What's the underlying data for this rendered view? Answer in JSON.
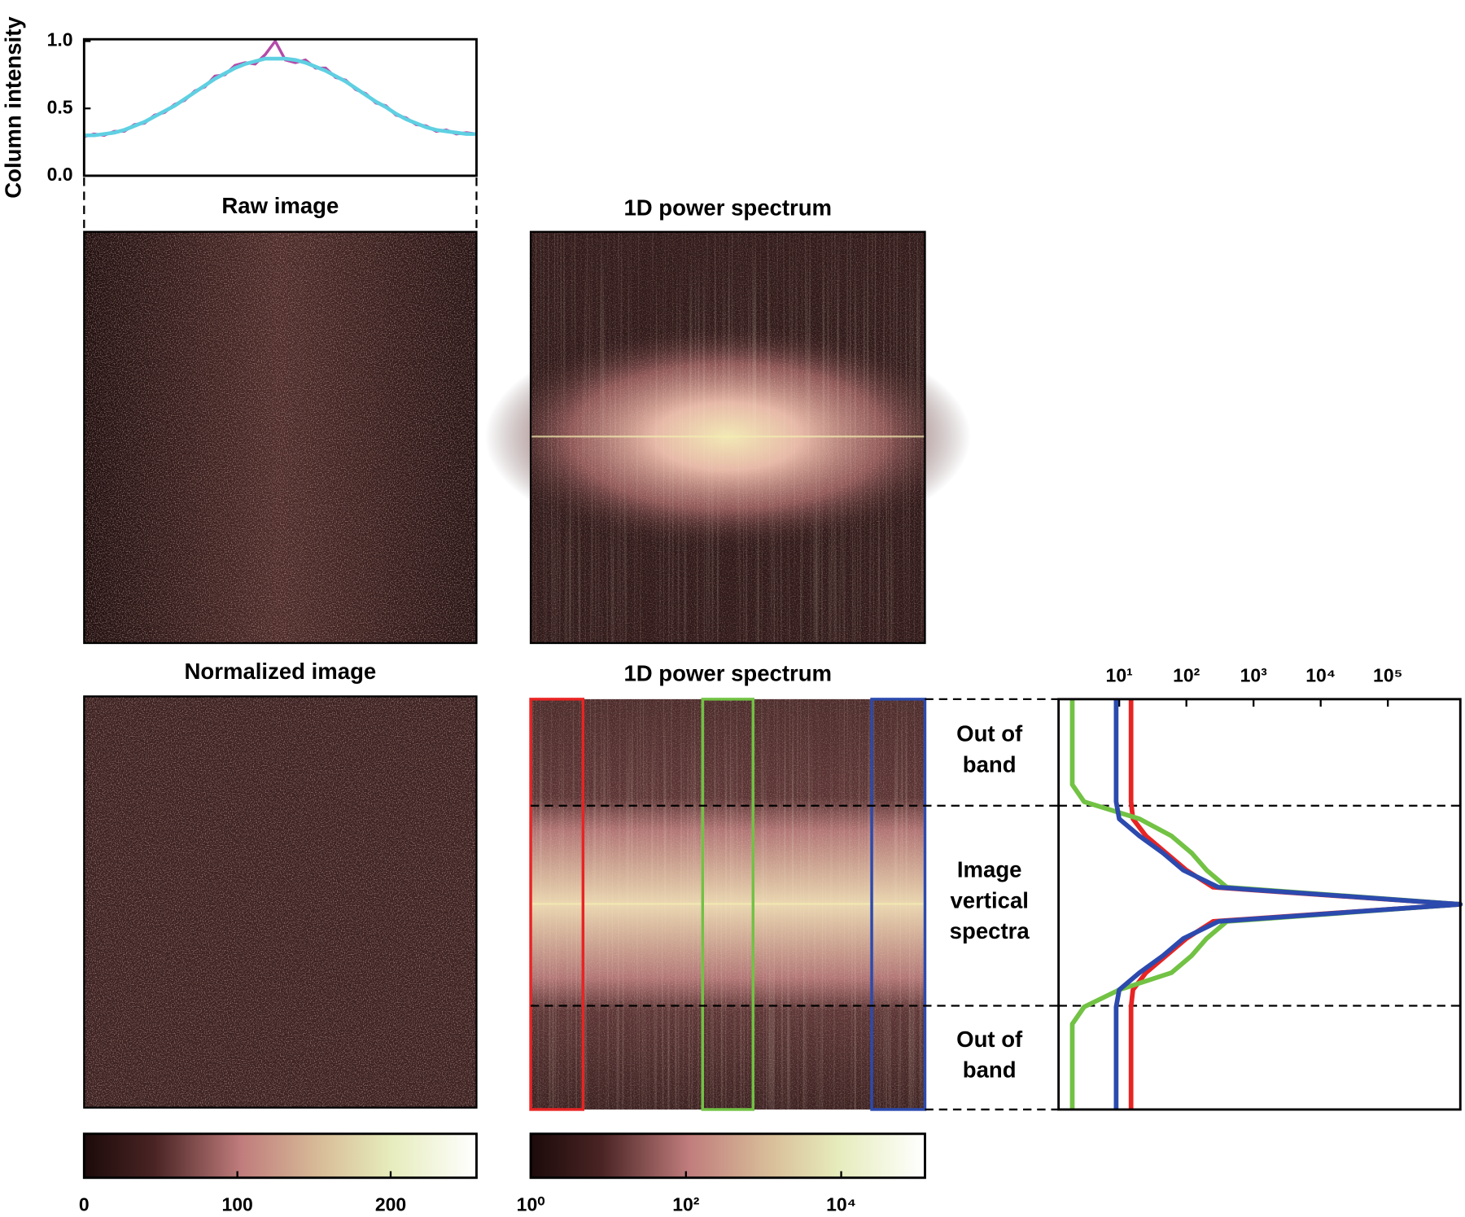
{
  "chart_data": [
    {
      "type": "line",
      "ylabel": "Column intensity",
      "ylim": [
        0,
        1.0
      ],
      "yticks": [
        {
          "value": 0,
          "label": "0.0"
        },
        0.5,
        {
          "value": 1,
          "label": "1.0"
        }
      ],
      "series": [
        {
          "color": "#b44aa8",
          "values": [
            0.29,
            0.31,
            0.3,
            0.33,
            0.33,
            0.38,
            0.39,
            0.45,
            0.47,
            0.53,
            0.56,
            0.63,
            0.66,
            0.74,
            0.75,
            0.82,
            0.84,
            0.83,
            0.9,
            1.0,
            0.86,
            0.84,
            0.86,
            0.8,
            0.8,
            0.73,
            0.71,
            0.64,
            0.61,
            0.54,
            0.52,
            0.45,
            0.43,
            0.38,
            0.37,
            0.33,
            0.34,
            0.31,
            0.32,
            0.31
          ]
        },
        {
          "color": "#5fd0e2",
          "values": [
            0.3,
            0.3,
            0.31,
            0.32,
            0.34,
            0.37,
            0.4,
            0.44,
            0.48,
            0.52,
            0.57,
            0.62,
            0.67,
            0.72,
            0.76,
            0.8,
            0.83,
            0.85,
            0.87,
            0.87,
            0.87,
            0.86,
            0.84,
            0.81,
            0.78,
            0.74,
            0.7,
            0.65,
            0.6,
            0.55,
            0.51,
            0.46,
            0.42,
            0.39,
            0.36,
            0.34,
            0.33,
            0.32,
            0.31,
            0.31
          ]
        }
      ]
    },
    {
      "type": "image",
      "title": "Raw image"
    },
    {
      "type": "image",
      "title": "1D power spectrum"
    },
    {
      "type": "image",
      "title": "Normalized image"
    },
    {
      "type": "image",
      "title": "1D power spectrum"
    },
    {
      "type": "colorbar",
      "xlim": [
        0,
        256
      ],
      "xticks": [
        0,
        100,
        200
      ]
    },
    {
      "type": "colorbar",
      "log_scale": true,
      "xlim": [
        1,
        120000
      ],
      "xticks": [
        {
          "value": 1,
          "label": "10⁰"
        },
        {
          "value": 100,
          "label": "10²"
        },
        {
          "value": 10000,
          "label": "10⁴"
        }
      ]
    },
    {
      "type": "spectra",
      "log_scale": true,
      "xlim": [
        1.25,
        1200000
      ],
      "xticks": [
        {
          "value": 10,
          "label": "10¹"
        },
        {
          "value": 100,
          "label": "10²"
        },
        {
          "value": 1000,
          "label": "10³"
        },
        {
          "value": 10000,
          "label": "10⁴"
        },
        {
          "value": 100000,
          "label": "10⁵"
        }
      ],
      "annotations": [
        [
          "Out of",
          "band"
        ],
        [
          "Image",
          "vertical",
          "spectra"
        ],
        [
          "Out of",
          "band"
        ]
      ],
      "series": [
        {
          "color": "#e82424",
          "values": [
            15,
            15,
            15,
            15,
            15,
            15,
            15,
            16,
            25,
            50,
            100,
            250,
            1200000,
            250,
            100,
            50,
            25,
            16,
            15,
            15,
            15,
            15,
            15,
            15,
            15
          ]
        },
        {
          "color": "#72c244",
          "values": [
            2,
            2,
            2,
            2,
            2,
            2,
            3,
            20,
            60,
            120,
            200,
            400,
            1200000,
            400,
            200,
            120,
            60,
            10,
            3,
            2,
            2,
            2,
            2,
            2,
            2
          ]
        },
        {
          "color": "#2c4aae",
          "values": [
            9,
            9,
            9,
            9,
            9,
            9,
            9,
            10,
            20,
            45,
            90,
            300,
            1200000,
            300,
            90,
            45,
            20,
            10,
            9,
            9,
            9,
            9,
            9,
            9,
            9
          ]
        }
      ]
    }
  ]
}
